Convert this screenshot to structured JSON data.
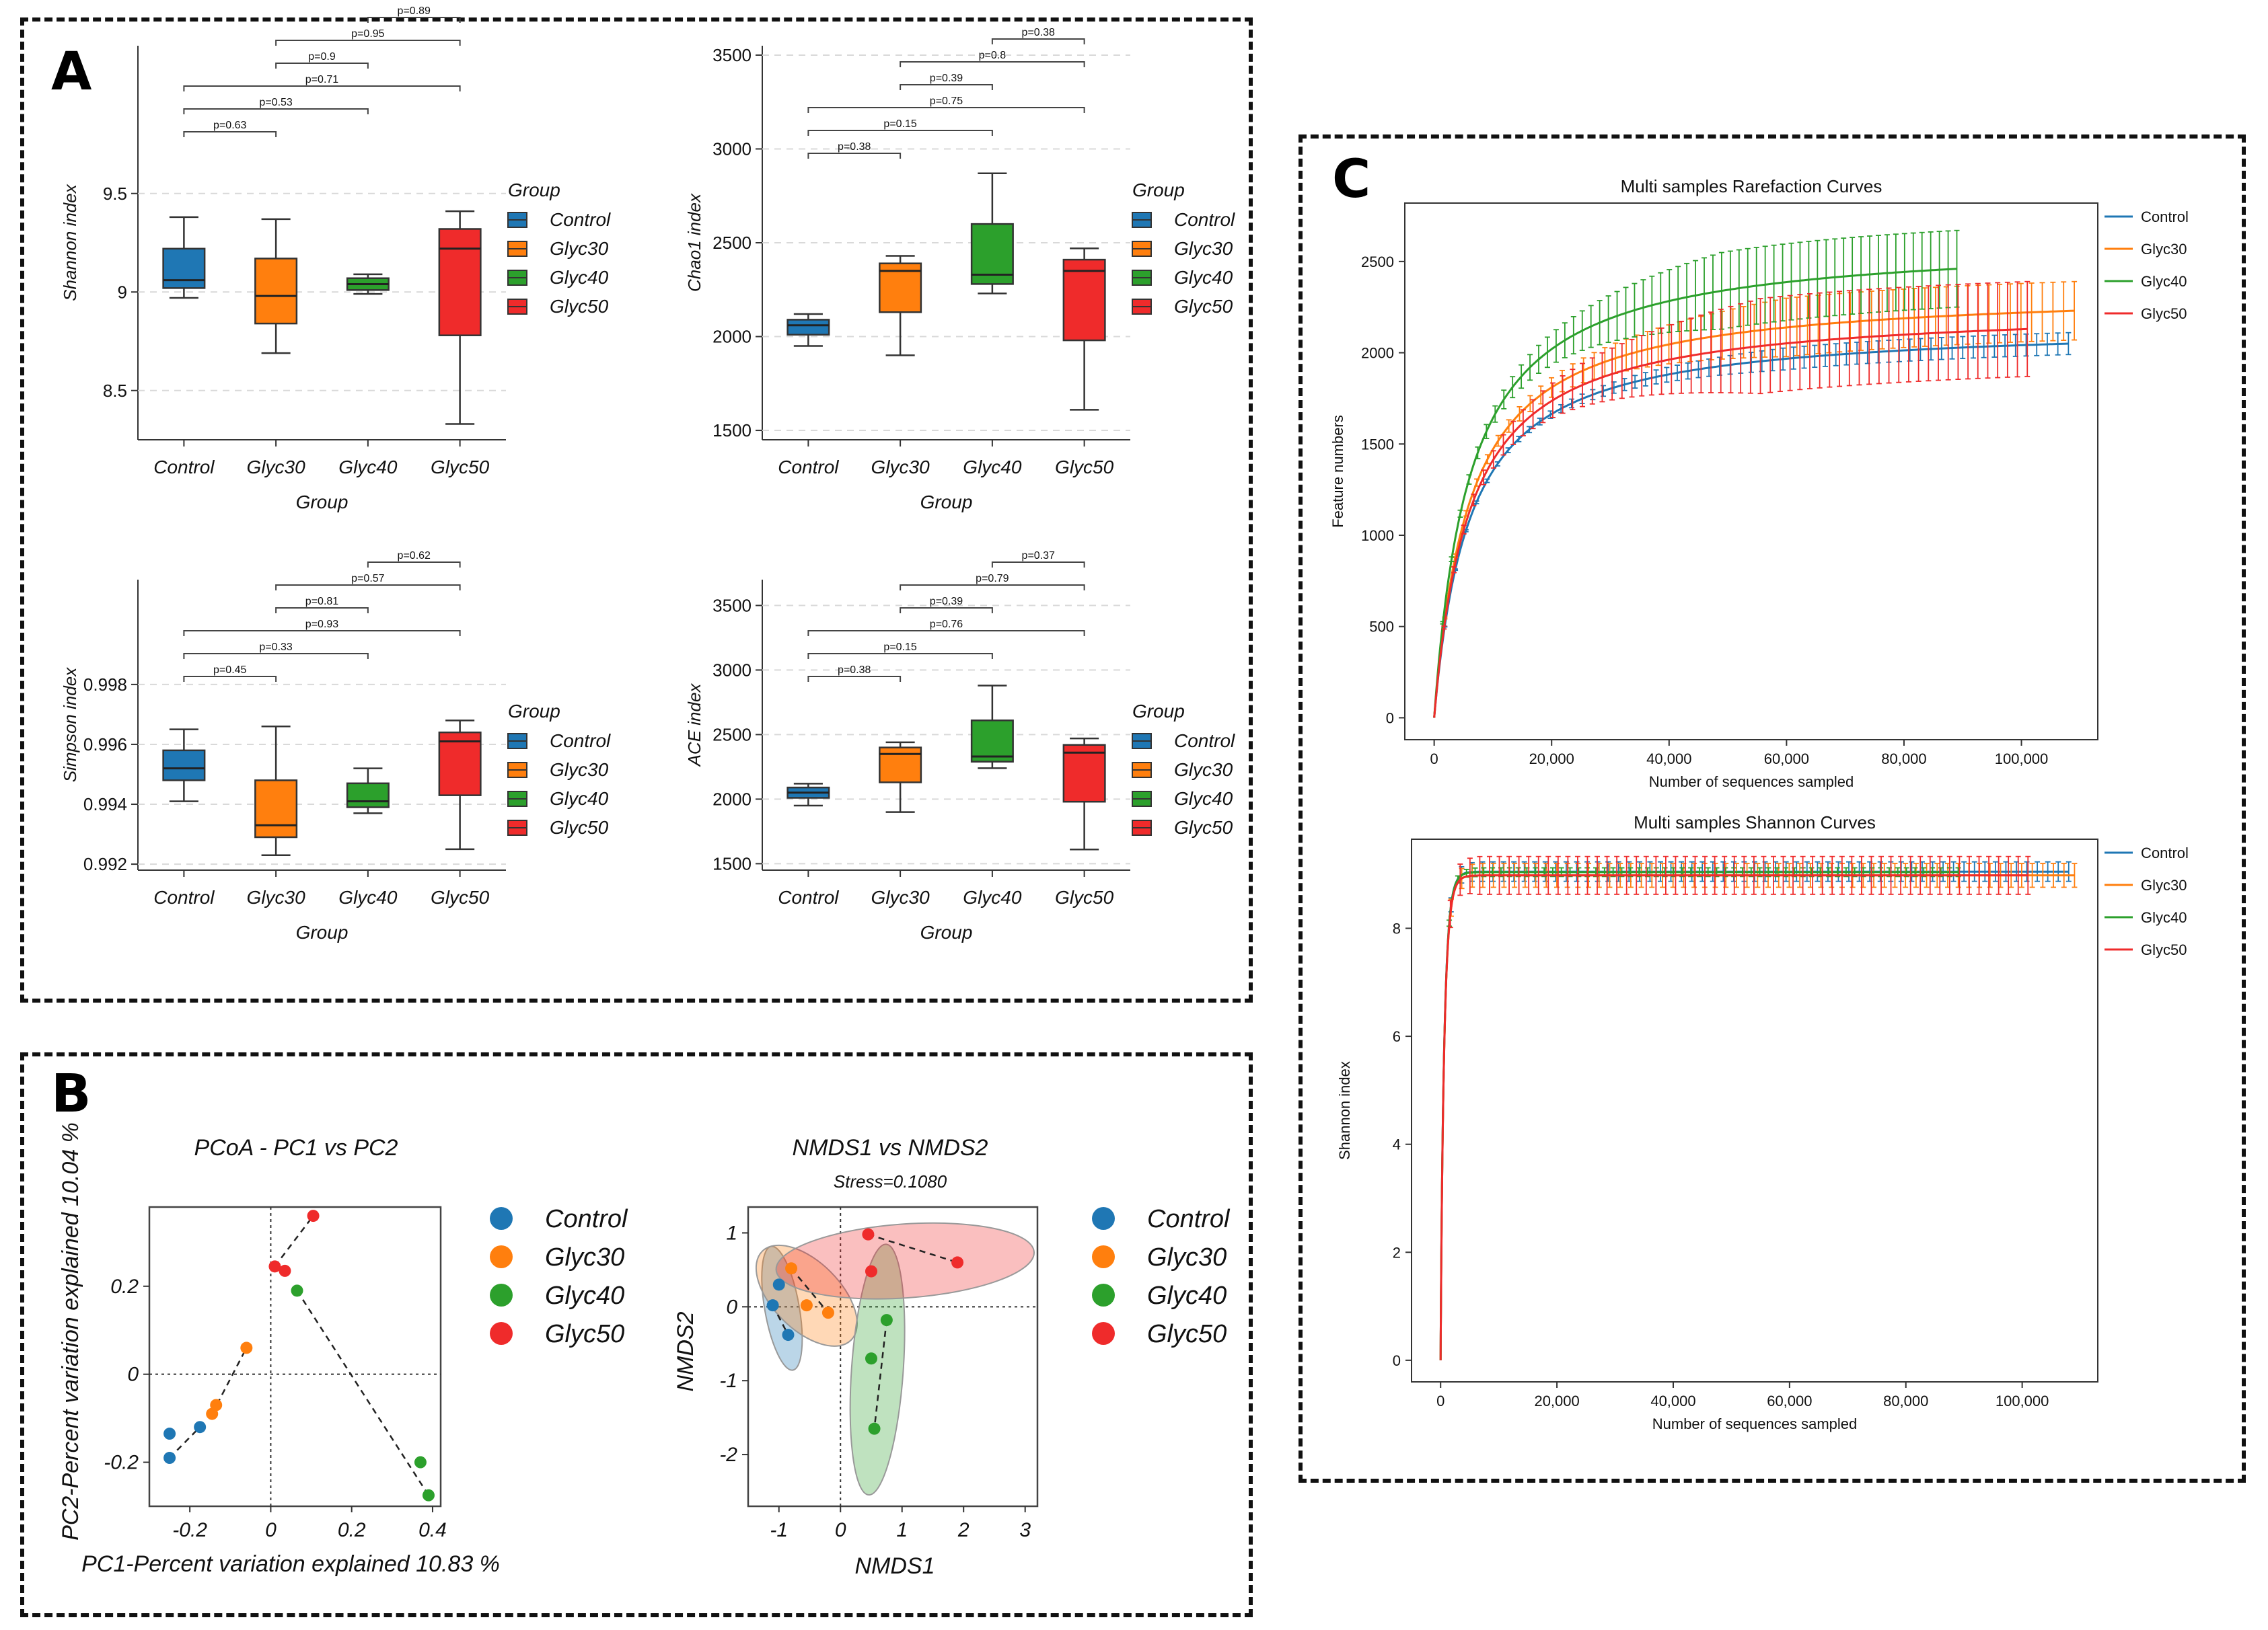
{
  "panels": {
    "A": "A",
    "B": "B",
    "C": "C"
  },
  "colors": {
    "Control": "#1f77b4",
    "Glyc30": "#ff7f0e",
    "Glyc40": "#2ca02c",
    "Glyc50": "#ef2b2b"
  },
  "group_title": "Group",
  "chart_data": [
    {
      "id": "shannon-box",
      "type": "box",
      "ylabel": "Shannon index",
      "xlabel": "Group",
      "ylim": [
        8.25,
        10.25
      ],
      "yticks": [
        8.5,
        9,
        9.5
      ],
      "categories": [
        "Control",
        "Glyc30",
        "Glyc40",
        "Glyc50"
      ],
      "boxes": [
        {
          "name": "Control",
          "min": 8.97,
          "q1": 9.02,
          "median": 9.06,
          "q3": 9.22,
          "max": 9.38
        },
        {
          "name": "Glyc30",
          "min": 8.69,
          "q1": 8.84,
          "median": 8.98,
          "q3": 9.17,
          "max": 9.37
        },
        {
          "name": "Glyc40",
          "min": 8.99,
          "q1": 9.01,
          "median": 9.04,
          "q3": 9.07,
          "max": 9.09
        },
        {
          "name": "Glyc50",
          "min": 8.33,
          "q1": 8.78,
          "median": 9.22,
          "q3": 9.32,
          "max": 9.41
        }
      ],
      "pvalues": [
        {
          "from": 0,
          "to": 1,
          "label": "p=0.63"
        },
        {
          "from": 0,
          "to": 2,
          "label": "p=0.53"
        },
        {
          "from": 0,
          "to": 3,
          "label": "p=0.71"
        },
        {
          "from": 1,
          "to": 2,
          "label": "p=0.9"
        },
        {
          "from": 1,
          "to": 3,
          "label": "p=0.95"
        },
        {
          "from": 2,
          "to": 3,
          "label": "p=0.89"
        }
      ],
      "legend": [
        "Control",
        "Glyc30",
        "Glyc40",
        "Glyc50"
      ]
    },
    {
      "id": "chao1-box",
      "type": "box",
      "ylabel": "Chao1 index",
      "xlabel": "Group",
      "ylim": [
        1450,
        3550
      ],
      "yticks": [
        1500,
        2000,
        2500,
        3000,
        3500
      ],
      "categories": [
        "Control",
        "Glyc30",
        "Glyc40",
        "Glyc50"
      ],
      "boxes": [
        {
          "name": "Control",
          "min": 1950,
          "q1": 2010,
          "median": 2060,
          "q3": 2090,
          "max": 2120
        },
        {
          "name": "Glyc30",
          "min": 1900,
          "q1": 2130,
          "median": 2350,
          "q3": 2390,
          "max": 2430
        },
        {
          "name": "Glyc40",
          "min": 2230,
          "q1": 2280,
          "median": 2330,
          "q3": 2600,
          "max": 2870
        },
        {
          "name": "Glyc50",
          "min": 1610,
          "q1": 1980,
          "median": 2350,
          "q3": 2410,
          "max": 2470
        }
      ],
      "pvalues": [
        {
          "from": 0,
          "to": 1,
          "label": "p=0.38"
        },
        {
          "from": 0,
          "to": 2,
          "label": "p=0.15"
        },
        {
          "from": 0,
          "to": 3,
          "label": "p=0.75"
        },
        {
          "from": 1,
          "to": 2,
          "label": "p=0.39"
        },
        {
          "from": 1,
          "to": 3,
          "label": "p=0.8"
        },
        {
          "from": 2,
          "to": 3,
          "label": "p=0.38"
        }
      ],
      "legend": [
        "Control",
        "Glyc30",
        "Glyc40",
        "Glyc50"
      ]
    },
    {
      "id": "simpson-box",
      "type": "box",
      "ylabel": "Simpson index",
      "xlabel": "Group",
      "ylim": [
        0.9918,
        1.0015
      ],
      "yticks": [
        0.992,
        0.994,
        0.996,
        0.998
      ],
      "categories": [
        "Control",
        "Glyc30",
        "Glyc40",
        "Glyc50"
      ],
      "boxes": [
        {
          "name": "Control",
          "min": 0.9941,
          "q1": 0.9948,
          "median": 0.9952,
          "q3": 0.9958,
          "max": 0.9965
        },
        {
          "name": "Glyc30",
          "min": 0.9923,
          "q1": 0.9929,
          "median": 0.9933,
          "q3": 0.9948,
          "max": 0.9966
        },
        {
          "name": "Glyc40",
          "min": 0.9937,
          "q1": 0.9939,
          "median": 0.9941,
          "q3": 0.9947,
          "max": 0.9952
        },
        {
          "name": "Glyc50",
          "min": 0.9925,
          "q1": 0.9943,
          "median": 0.9961,
          "q3": 0.9964,
          "max": 0.9968
        }
      ],
      "pvalues": [
        {
          "from": 0,
          "to": 1,
          "label": "p=0.45"
        },
        {
          "from": 0,
          "to": 2,
          "label": "p=0.33"
        },
        {
          "from": 0,
          "to": 3,
          "label": "p=0.93"
        },
        {
          "from": 1,
          "to": 2,
          "label": "p=0.81"
        },
        {
          "from": 1,
          "to": 3,
          "label": "p=0.57"
        },
        {
          "from": 2,
          "to": 3,
          "label": "p=0.62"
        }
      ],
      "legend": [
        "Control",
        "Glyc30",
        "Glyc40",
        "Glyc50"
      ]
    },
    {
      "id": "ace-box",
      "type": "box",
      "ylabel": "ACE index",
      "xlabel": "Group",
      "ylim": [
        1450,
        3700
      ],
      "yticks": [
        1500,
        2000,
        2500,
        3000,
        3500
      ],
      "categories": [
        "Control",
        "Glyc30",
        "Glyc40",
        "Glyc50"
      ],
      "boxes": [
        {
          "name": "Control",
          "min": 1950,
          "q1": 2010,
          "median": 2050,
          "q3": 2090,
          "max": 2120
        },
        {
          "name": "Glyc30",
          "min": 1900,
          "q1": 2130,
          "median": 2350,
          "q3": 2400,
          "max": 2440
        },
        {
          "name": "Glyc40",
          "min": 2240,
          "q1": 2290,
          "median": 2330,
          "q3": 2610,
          "max": 2880
        },
        {
          "name": "Glyc50",
          "min": 1610,
          "q1": 1980,
          "median": 2360,
          "q3": 2420,
          "max": 2470
        }
      ],
      "pvalues": [
        {
          "from": 0,
          "to": 1,
          "label": "p=0.38"
        },
        {
          "from": 0,
          "to": 2,
          "label": "p=0.15"
        },
        {
          "from": 0,
          "to": 3,
          "label": "p=0.76"
        },
        {
          "from": 1,
          "to": 2,
          "label": "p=0.39"
        },
        {
          "from": 1,
          "to": 3,
          "label": "p=0.79"
        },
        {
          "from": 2,
          "to": 3,
          "label": "p=0.37"
        }
      ],
      "legend": [
        "Control",
        "Glyc30",
        "Glyc40",
        "Glyc50"
      ]
    },
    {
      "id": "pcoa",
      "type": "scatter",
      "title": "PCoA - PC1 vs PC2",
      "xlabel": "PC1-Percent variation explained 10.83 %",
      "ylabel": "PC2-Percent variation explained 10.04 %",
      "xlim": [
        -0.3,
        0.42
      ],
      "ylim": [
        -0.3,
        0.38
      ],
      "xticks": [
        "-0.2",
        "0",
        "0.2",
        "0.4"
      ],
      "yticks": [
        "-0.2",
        "0",
        "0.2"
      ],
      "series": [
        {
          "name": "Control",
          "points": [
            [
              -0.25,
              -0.19
            ],
            [
              -0.25,
              -0.135
            ],
            [
              -0.175,
              -0.12
            ]
          ],
          "path": [
            [
              -0.25,
              -0.19
            ],
            [
              -0.175,
              -0.12
            ]
          ]
        },
        {
          "name": "Glyc30",
          "points": [
            [
              -0.145,
              -0.09
            ],
            [
              -0.135,
              -0.07
            ],
            [
              -0.06,
              0.06
            ]
          ],
          "path": [
            [
              -0.145,
              -0.09
            ],
            [
              -0.06,
              0.06
            ]
          ]
        },
        {
          "name": "Glyc40",
          "points": [
            [
              0.065,
              0.19
            ],
            [
              0.37,
              -0.2
            ],
            [
              0.39,
              -0.275
            ]
          ],
          "path": [
            [
              0.065,
              0.19
            ],
            [
              0.39,
              -0.275
            ]
          ]
        },
        {
          "name": "Glyc50",
          "points": [
            [
              0.01,
              0.245
            ],
            [
              0.035,
              0.235
            ],
            [
              0.105,
              0.36
            ]
          ],
          "path": [
            [
              0.01,
              0.245
            ],
            [
              0.105,
              0.36
            ]
          ]
        }
      ],
      "legend": [
        "Control",
        "Glyc30",
        "Glyc40",
        "Glyc50"
      ]
    },
    {
      "id": "nmds",
      "type": "scatter",
      "title": "NMDS1 vs NMDS2",
      "subtitle": "Stress=0.1080",
      "xlabel": "NMDS1",
      "ylabel": "NMDS2",
      "xlim": [
        -1.5,
        3.2
      ],
      "ylim": [
        -2.7,
        1.35
      ],
      "xticks": [
        "-1",
        "0",
        "1",
        "2",
        "3"
      ],
      "yticks": [
        "-2",
        "-1",
        "0",
        "1"
      ],
      "series": [
        {
          "name": "Control",
          "points": [
            [
              -1.1,
              0.02
            ],
            [
              -1.0,
              0.3
            ],
            [
              -0.85,
              -0.38
            ]
          ],
          "path": [
            [
              -1.1,
              0.02
            ],
            [
              -0.85,
              -0.38
            ]
          ]
        },
        {
          "name": "Glyc30",
          "points": [
            [
              -0.8,
              0.52
            ],
            [
              -0.55,
              0.02
            ],
            [
              -0.2,
              -0.08
            ]
          ],
          "path": [
            [
              -0.8,
              0.52
            ],
            [
              -0.2,
              -0.08
            ]
          ]
        },
        {
          "name": "Glyc40",
          "points": [
            [
              0.5,
              -0.7
            ],
            [
              0.75,
              -0.18
            ],
            [
              0.55,
              -1.65
            ]
          ],
          "path": [
            [
              0.75,
              -0.18
            ],
            [
              0.55,
              -1.65
            ]
          ]
        },
        {
          "name": "Glyc50",
          "points": [
            [
              0.45,
              0.98
            ],
            [
              0.5,
              0.48
            ],
            [
              1.9,
              0.6
            ]
          ],
          "path": [
            [
              0.45,
              0.98
            ],
            [
              1.9,
              0.6
            ]
          ]
        }
      ],
      "ellipses": [
        {
          "name": "Control",
          "cx": -0.95,
          "cy": -0.02,
          "rx": 0.28,
          "ry": 0.85,
          "angle": -10
        },
        {
          "name": "Glyc30",
          "cx": -0.55,
          "cy": 0.15,
          "rx": 0.55,
          "ry": 0.85,
          "angle": -45
        },
        {
          "name": "Glyc40",
          "cx": 0.6,
          "cy": -0.85,
          "rx": 0.42,
          "ry": 1.7,
          "angle": 4
        },
        {
          "name": "Glyc50",
          "cx": 1.05,
          "cy": 0.62,
          "rx": 2.1,
          "ry": 0.5,
          "angle": -4
        }
      ],
      "legend": [
        "Control",
        "Glyc30",
        "Glyc40",
        "Glyc50"
      ]
    },
    {
      "id": "rarefaction",
      "type": "line",
      "title": "Multi samples Rarefaction Curves",
      "xlabel": "Number of sequences sampled",
      "ylabel": "Feature numbers",
      "xlim": [
        -5000,
        113000
      ],
      "ylim": [
        -120,
        2820
      ],
      "xticks": [
        0,
        20000,
        40000,
        60000,
        80000,
        100000
      ],
      "xticklabels": [
        "0",
        "20,000",
        "40,000",
        "60,000",
        "80,000",
        "100,000"
      ],
      "yticks": [
        0,
        500,
        1000,
        1500,
        2000,
        2500
      ],
      "series": [
        {
          "name": "Control",
          "final": 2050,
          "xmax": 108000,
          "err": 60
        },
        {
          "name": "Glyc30",
          "final": 2230,
          "xmax": 109000,
          "err": 160
        },
        {
          "name": "Glyc40",
          "final": 2460,
          "xmax": 89000,
          "err": 210
        },
        {
          "name": "Glyc50",
          "final": 2130,
          "xmax": 101000,
          "err": 260
        }
      ],
      "legend": [
        "Control",
        "Glyc30",
        "Glyc40",
        "Glyc50"
      ]
    },
    {
      "id": "shannon-curve",
      "type": "line",
      "title": "Multi samples Shannon Curves",
      "xlabel": "Number of sequences sampled",
      "ylabel": "Shannon index",
      "xlim": [
        -5000,
        113000
      ],
      "ylim": [
        -0.4,
        9.65
      ],
      "xticks": [
        0,
        20000,
        40000,
        60000,
        80000,
        100000
      ],
      "xticklabels": [
        "0",
        "20,000",
        "40,000",
        "60,000",
        "80,000",
        "100,000"
      ],
      "yticks": [
        0,
        2,
        4,
        6,
        8
      ],
      "series": [
        {
          "name": "Control",
          "final": 9.05,
          "xmax": 108000,
          "err": 0.18
        },
        {
          "name": "Glyc30",
          "final": 8.98,
          "xmax": 109000,
          "err": 0.22
        },
        {
          "name": "Glyc40",
          "final": 9.04,
          "xmax": 89000,
          "err": 0.08
        },
        {
          "name": "Glyc50",
          "final": 8.98,
          "xmax": 101000,
          "err": 0.35
        }
      ],
      "legend": [
        "Control",
        "Glyc30",
        "Glyc40",
        "Glyc50"
      ]
    }
  ]
}
